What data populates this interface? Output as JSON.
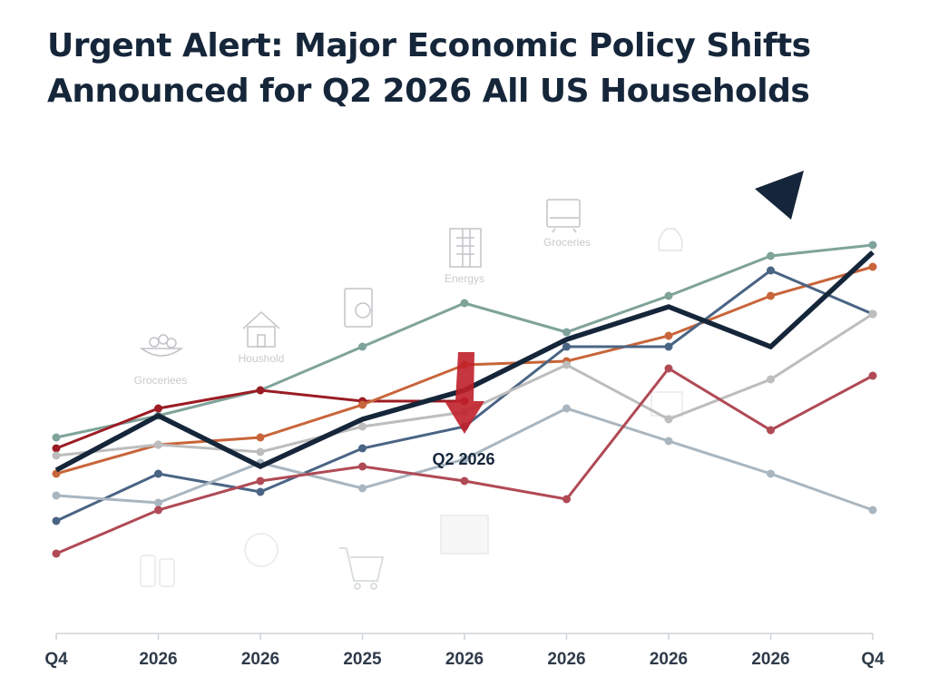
{
  "title_line1": "Urgent Alert: Major Economic Policy Shifts",
  "title_line2": "Announced for Q2 2026 All US Households",
  "chart_data": {
    "type": "line",
    "title": "Urgent Alert: Major Economic Policy Shifts Announced for Q2 2026 All US Households",
    "categories": [
      "Q4",
      "2026",
      "2026",
      "2025",
      "2026",
      "2026",
      "2026",
      "2026",
      "Q4"
    ],
    "ylim": [
      0,
      100
    ],
    "grid": false,
    "series": [
      {
        "color": "#7fa39a",
        "values": [
          42,
          48,
          55,
          67,
          79,
          71,
          81,
          92,
          95
        ]
      },
      {
        "color": "#9b1c24",
        "values": [
          39,
          50,
          55,
          52,
          52,
          null,
          null,
          null,
          null
        ]
      },
      {
        "color": "#c8653a",
        "values": [
          32,
          40,
          42,
          51,
          62,
          63,
          70,
          81,
          89
        ]
      },
      {
        "color": "#4a6484",
        "values": [
          19,
          32,
          27,
          39,
          45,
          67,
          67,
          88,
          76
        ]
      },
      {
        "color": "#bdbdbd",
        "values": [
          37,
          40,
          38,
          45,
          49,
          62,
          47,
          58,
          76
        ]
      },
      {
        "color": "#a9b6c0",
        "values": [
          26,
          24,
          35,
          28,
          36,
          50,
          41,
          32,
          22
        ]
      },
      {
        "color": "#b04a55",
        "values": [
          10,
          22,
          30,
          34,
          30,
          25,
          61,
          44,
          59
        ]
      },
      {
        "color": "#16263a",
        "values": [
          33,
          48,
          34,
          47,
          55,
          69,
          78,
          67,
          93
        ]
      }
    ],
    "annotations": [
      {
        "category_index": 4,
        "text": "Q2 2026"
      }
    ],
    "icon_labels": [
      "Groceriees",
      "Houshold",
      "Energys",
      "Groceries"
    ]
  }
}
